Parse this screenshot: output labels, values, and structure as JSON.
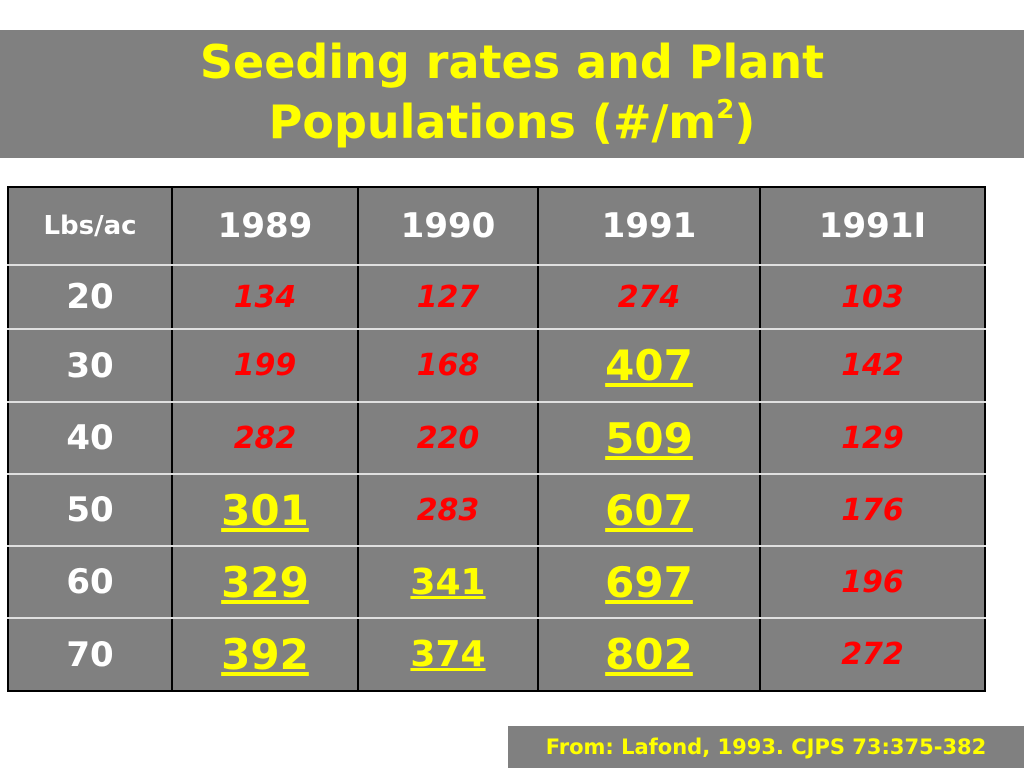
{
  "title": {
    "line1": "Seeding rates and Plant",
    "line2_prefix": "Populations (#/m",
    "line2_sup": "2",
    "line2_suffix": ")"
  },
  "table": {
    "headers": [
      "Lbs/ac",
      "1989",
      "1990",
      "1991",
      "1991I"
    ],
    "rows": [
      {
        "rate": "20",
        "cells": [
          {
            "v": "134",
            "style": "small"
          },
          {
            "v": "127",
            "style": "small"
          },
          {
            "v": "274",
            "style": "small"
          },
          {
            "v": "103",
            "style": "small"
          }
        ]
      },
      {
        "rate": "30",
        "cells": [
          {
            "v": "199",
            "style": "small"
          },
          {
            "v": "168",
            "style": "small"
          },
          {
            "v": "407",
            "style": "large"
          },
          {
            "v": "142",
            "style": "small"
          }
        ]
      },
      {
        "rate": "40",
        "cells": [
          {
            "v": "282",
            "style": "small"
          },
          {
            "v": "220",
            "style": "small"
          },
          {
            "v": "509",
            "style": "large"
          },
          {
            "v": "129",
            "style": "small"
          }
        ]
      },
      {
        "rate": "50",
        "cells": [
          {
            "v": "301",
            "style": "large"
          },
          {
            "v": "283",
            "style": "small"
          },
          {
            "v": "607",
            "style": "large"
          },
          {
            "v": "176",
            "style": "small"
          }
        ]
      },
      {
        "rate": "60",
        "cells": [
          {
            "v": "329",
            "style": "large"
          },
          {
            "v": "341",
            "style": "mid"
          },
          {
            "v": "697",
            "style": "large"
          },
          {
            "v": "196",
            "style": "small"
          }
        ]
      },
      {
        "rate": "70",
        "cells": [
          {
            "v": "392",
            "style": "large"
          },
          {
            "v": "374",
            "style": "mid"
          },
          {
            "v": "802",
            "style": "large"
          },
          {
            "v": "272",
            "style": "small"
          }
        ]
      }
    ]
  },
  "source": "From: Lafond,  1993. CJPS 73:375-382",
  "colors": {
    "background_band": "#808080",
    "title": "#ffff00",
    "header_text": "#ffffff",
    "low_value": "#ff0000",
    "high_value": "#ffff00"
  }
}
